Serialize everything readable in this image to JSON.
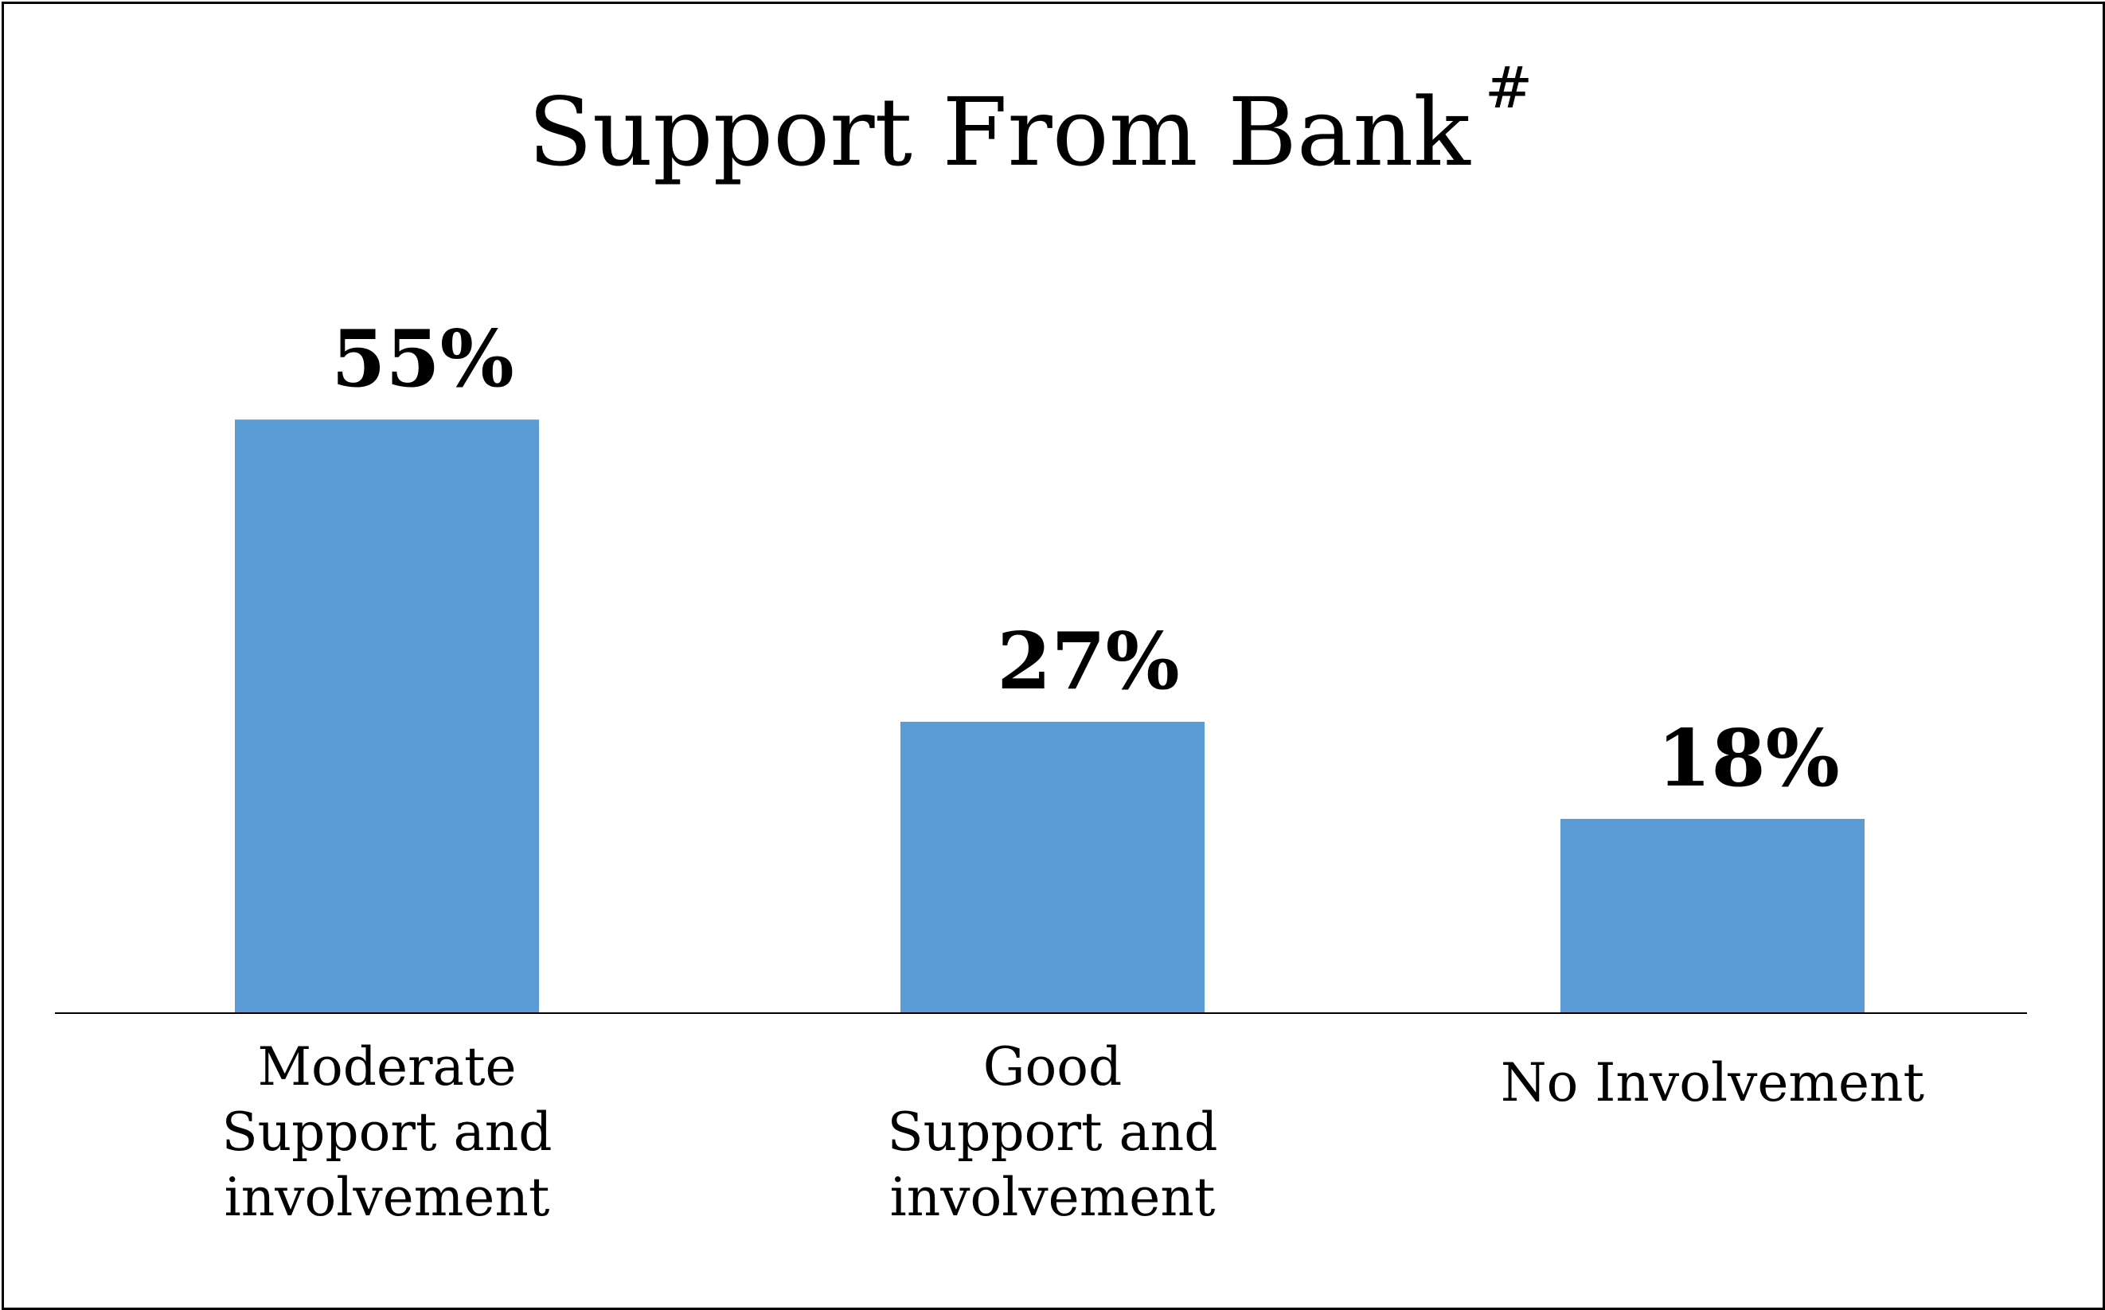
{
  "chart_data": {
    "type": "bar",
    "title": "Support From Bank",
    "title_superscript": "#",
    "categories": [
      [
        "Moderate",
        "Support and",
        "involvement"
      ],
      [
        "Good",
        "Support and",
        "involvement"
      ],
      [
        "No Involvement"
      ]
    ],
    "values": [
      55,
      27,
      18
    ],
    "data_labels": [
      "55%",
      "27%",
      "18%"
    ],
    "ylim": [
      0,
      60
    ],
    "grid": false,
    "legend": false,
    "bar_color": "#5b9bd5"
  }
}
